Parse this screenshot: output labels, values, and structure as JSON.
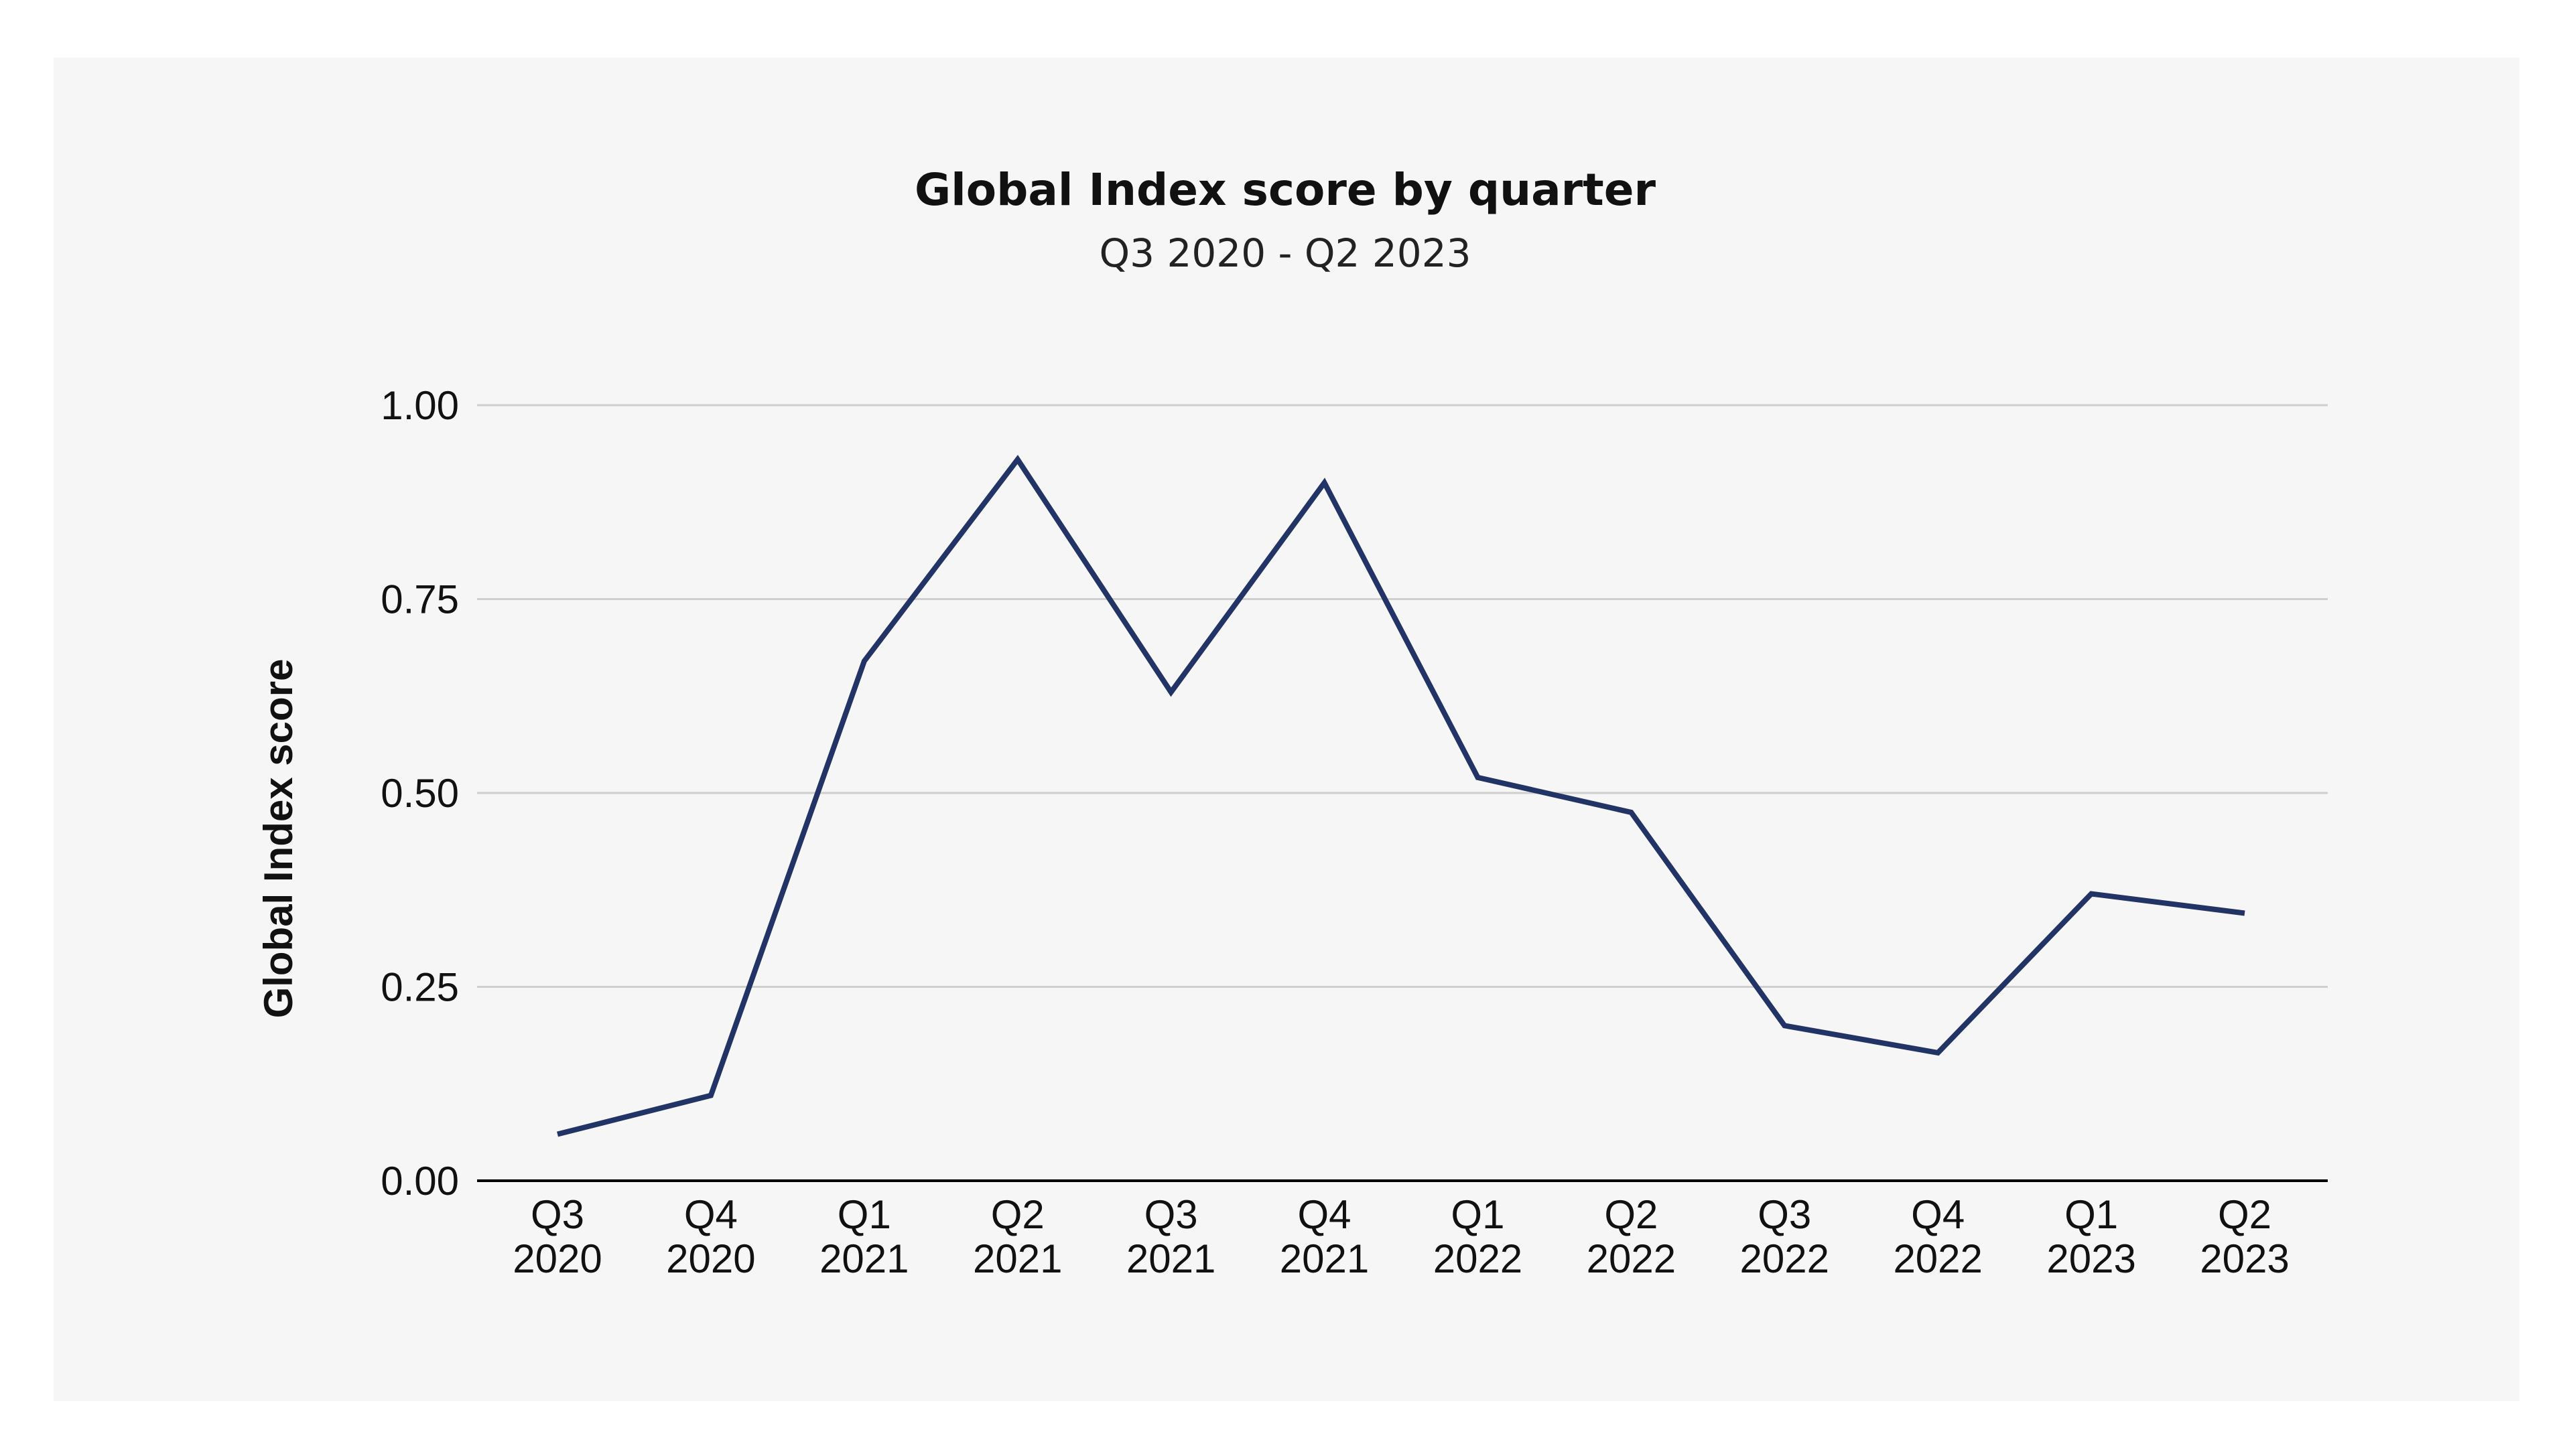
{
  "chart_data": {
    "type": "line",
    "title": "Global Index score by quarter",
    "subtitle": "Q3 2020 - Q2 2023",
    "xlabel": "",
    "ylabel": "Global Index score",
    "categories": [
      [
        "Q3",
        "2020"
      ],
      [
        "Q4",
        "2020"
      ],
      [
        "Q1",
        "2021"
      ],
      [
        "Q2",
        "2021"
      ],
      [
        "Q3",
        "2021"
      ],
      [
        "Q4",
        "2021"
      ],
      [
        "Q1",
        "2022"
      ],
      [
        "Q2",
        "2022"
      ],
      [
        "Q3",
        "2022"
      ],
      [
        "Q4",
        "2022"
      ],
      [
        "Q1",
        "2023"
      ],
      [
        "Q2",
        "2023"
      ]
    ],
    "series": [
      {
        "name": "Global Index score",
        "color": "#223366",
        "values": [
          0.06,
          0.11,
          0.67,
          0.93,
          0.63,
          0.9,
          0.52,
          0.475,
          0.2,
          0.165,
          0.37,
          0.345
        ]
      }
    ],
    "ylim": [
      0,
      1
    ],
    "yticks": [
      "0.00",
      "0.25",
      "0.50",
      "0.75",
      "1.00"
    ],
    "grid": true,
    "legend": "none"
  },
  "colors": {
    "panel_background": "#f6f6f6",
    "gridline": "#cfcfcf",
    "axis": "#000000",
    "line": "#223366"
  }
}
